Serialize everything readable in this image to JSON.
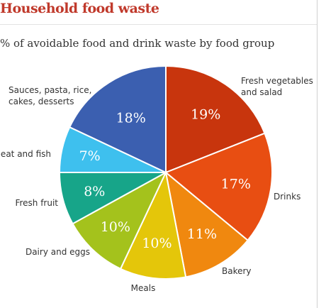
{
  "title": "Household food waste",
  "subtitle": "% of avoidable food and drink waste by food  group",
  "chart_data": {
    "type": "pie",
    "title": "Household food waste",
    "subtitle": "% of avoidable food and drink waste by food  group",
    "slices": [
      {
        "label": [
          "Fresh vegetables",
          "and salad"
        ],
        "value": 19,
        "display": "19%",
        "color": "#c8350d"
      },
      {
        "label": [
          "Drinks"
        ],
        "value": 17,
        "display": "17%",
        "color": "#e84e12"
      },
      {
        "label": [
          "Bakery"
        ],
        "value": 11,
        "display": "11%",
        "color": "#f0880f"
      },
      {
        "label": [
          "Meals"
        ],
        "value": 10,
        "display": "10%",
        "color": "#e4c60a"
      },
      {
        "label": [
          "Dairy and eggs"
        ],
        "value": 10,
        "display": "10%",
        "color": "#a4c21c"
      },
      {
        "label": [
          "Fresh fruit"
        ],
        "value": 8,
        "display": "8%",
        "color": "#17a589"
      },
      {
        "label": [
          "Meat and fish"
        ],
        "value": 7,
        "display": "7%",
        "color": "#3ec0ee"
      },
      {
        "label": [
          "Sauces, pasta, rice,",
          "cakes, desserts"
        ],
        "value": 18,
        "display": "18%",
        "color": "#3b5fb0"
      }
    ]
  }
}
